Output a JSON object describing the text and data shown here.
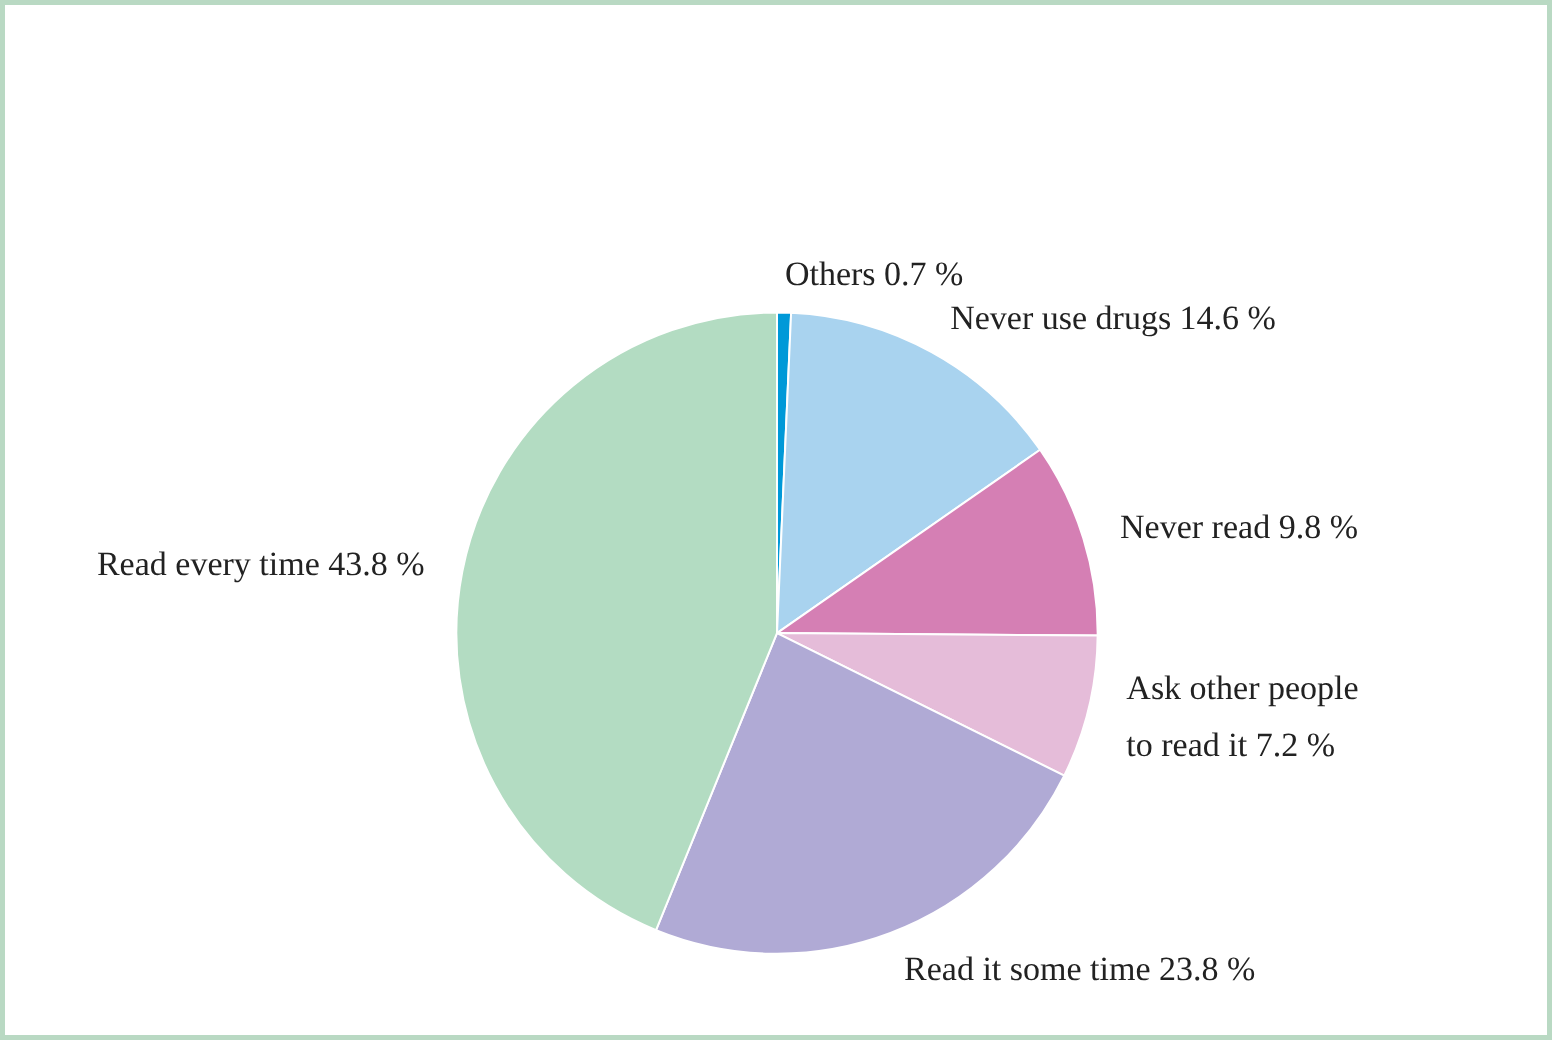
{
  "chart_data": {
    "type": "pie",
    "categories": [
      "Others",
      "Never use drugs",
      "Never read",
      "Ask other people\nto read it",
      "Read it some time",
      "Read every time"
    ],
    "values": [
      0.7,
      14.6,
      9.8,
      7.2,
      23.8,
      43.8
    ],
    "value_labels": [
      "0.7 %",
      "14.6 %",
      "9.8 %",
      "7.2 %",
      "23.8 %",
      "43.8 %"
    ],
    "colors": [
      "#0099d8",
      "#a9d3ef",
      "#d57fb4",
      "#e5bcd9",
      "#b0aad5",
      "#b3dcc2"
    ],
    "legend": false
  }
}
